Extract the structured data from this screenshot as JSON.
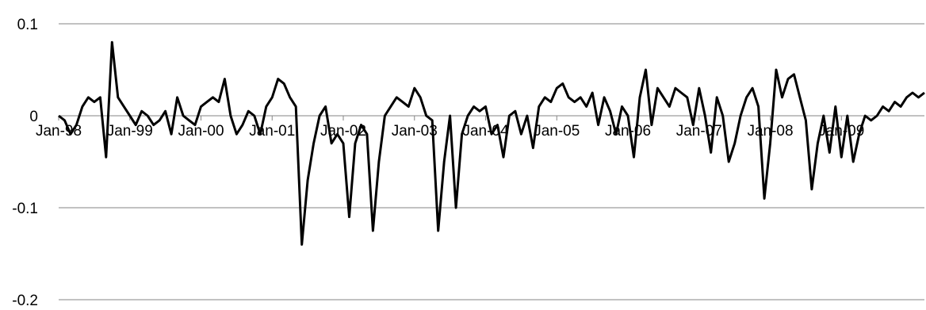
{
  "chart_data": {
    "type": "line",
    "title": "",
    "xlabel": "",
    "ylabel": "",
    "ylim": [
      -0.2,
      0.1
    ],
    "y_ticks": [
      0.1,
      0,
      -0.1,
      -0.2
    ],
    "y_tick_labels": [
      "0.1",
      "0",
      "-0.1",
      "-0.2"
    ],
    "x_range": [
      "1998-01",
      "2010-03"
    ],
    "x_ticks": [
      "1998-01",
      "1999-01",
      "2000-01",
      "2001-01",
      "2002-01",
      "2003-01",
      "2004-01",
      "2005-01",
      "2006-01",
      "2007-01",
      "2008-01",
      "2009-01"
    ],
    "x_tick_labels": [
      "Jan-98",
      "Jan-99",
      "Jan-00",
      "Jan-01",
      "Jan-02",
      "Jan-03",
      "Jan-04",
      "Jan-05",
      "Jan-06",
      "Jan-07",
      "Jan-08",
      "Jan-09"
    ],
    "grid": "horizontal",
    "legend": "none",
    "line_color": "#000000",
    "grid_color": "#868686",
    "series": [
      {
        "x": [
          "1998-01",
          "1998-02",
          "1998-03",
          "1998-04",
          "1998-05",
          "1998-06",
          "1998-07",
          "1998-08",
          "1998-09",
          "1998-10",
          "1998-11",
          "1998-12",
          "1999-01",
          "1999-02",
          "1999-03",
          "1999-04",
          "1999-05",
          "1999-06",
          "1999-07",
          "1999-08",
          "1999-09",
          "1999-10",
          "1999-11",
          "1999-12",
          "2000-01",
          "2000-02",
          "2000-03",
          "2000-04",
          "2000-05",
          "2000-06",
          "2000-07",
          "2000-08",
          "2000-09",
          "2000-10",
          "2000-11",
          "2000-12",
          "2001-01",
          "2001-02",
          "2001-03",
          "2001-04",
          "2001-05",
          "2001-06",
          "2001-07",
          "2001-08",
          "2001-09",
          "2001-10",
          "2001-11",
          "2001-12",
          "2002-01",
          "2002-02",
          "2002-03",
          "2002-04",
          "2002-05",
          "2002-06",
          "2002-07",
          "2002-08",
          "2002-09",
          "2002-10",
          "2002-11",
          "2002-12",
          "2003-01",
          "2003-02",
          "2003-03",
          "2003-04",
          "2003-05",
          "2003-06",
          "2003-07",
          "2003-08",
          "2003-09",
          "2003-10",
          "2003-11",
          "2003-12",
          "2004-01",
          "2004-02",
          "2004-03",
          "2004-04",
          "2004-05",
          "2004-06",
          "2004-07",
          "2004-08",
          "2004-09",
          "2004-10",
          "2004-11",
          "2004-12",
          "2005-01",
          "2005-02",
          "2005-03",
          "2005-04",
          "2005-05",
          "2005-06",
          "2005-07",
          "2005-08",
          "2005-09",
          "2005-10",
          "2005-11",
          "2005-12",
          "2006-01",
          "2006-02",
          "2006-03",
          "2006-04",
          "2006-05",
          "2006-06",
          "2006-07",
          "2006-08",
          "2006-09",
          "2006-10",
          "2006-11",
          "2006-12",
          "2007-01",
          "2007-02",
          "2007-03",
          "2007-04",
          "2007-05",
          "2007-06",
          "2007-07",
          "2007-08",
          "2007-09",
          "2007-10",
          "2007-11",
          "2007-12",
          "2008-01",
          "2008-02",
          "2008-03",
          "2008-04",
          "2008-05",
          "2008-06",
          "2008-07",
          "2008-08",
          "2008-09",
          "2008-10",
          "2008-11",
          "2008-12",
          "2009-01",
          "2009-02",
          "2009-03",
          "2009-04",
          "2009-05",
          "2009-06",
          "2009-07",
          "2009-08",
          "2009-09",
          "2009-10",
          "2009-11",
          "2009-12",
          "2010-01",
          "2010-02",
          "2010-03"
        ],
        "y": [
          0.0,
          -0.005,
          -0.02,
          -0.01,
          0.01,
          0.02,
          0.015,
          0.02,
          -0.045,
          0.08,
          0.02,
          0.01,
          0.0,
          -0.01,
          0.005,
          0.0,
          -0.01,
          -0.005,
          0.005,
          -0.02,
          0.02,
          0.0,
          -0.005,
          -0.01,
          0.01,
          0.015,
          0.02,
          0.015,
          0.04,
          0.0,
          -0.02,
          -0.01,
          0.005,
          0.0,
          -0.02,
          0.01,
          0.02,
          0.04,
          0.035,
          0.02,
          0.01,
          -0.14,
          -0.07,
          -0.03,
          0.0,
          0.01,
          -0.03,
          -0.02,
          -0.03,
          -0.11,
          -0.03,
          -0.01,
          -0.02,
          -0.125,
          -0.05,
          0.0,
          0.01,
          0.02,
          0.015,
          0.01,
          0.03,
          0.02,
          0.0,
          -0.005,
          -0.125,
          -0.05,
          0.0,
          -0.1,
          -0.02,
          0.0,
          0.01,
          0.005,
          0.01,
          -0.02,
          -0.01,
          -0.045,
          0.0,
          0.005,
          -0.02,
          0.0,
          -0.035,
          0.01,
          0.02,
          0.015,
          0.03,
          0.035,
          0.02,
          0.015,
          0.02,
          0.01,
          0.025,
          -0.01,
          0.02,
          0.005,
          -0.02,
          0.01,
          0.0,
          -0.045,
          0.02,
          0.05,
          -0.01,
          0.03,
          0.02,
          0.01,
          0.03,
          0.025,
          0.02,
          -0.01,
          0.03,
          0.0,
          -0.04,
          0.02,
          0.0,
          -0.05,
          -0.03,
          0.0,
          0.02,
          0.03,
          0.01,
          -0.09,
          -0.03,
          0.05,
          0.02,
          0.04,
          0.045,
          0.02,
          -0.005,
          -0.08,
          -0.03,
          0.0,
          -0.04,
          0.01,
          -0.045,
          0.0,
          -0.05,
          -0.02,
          0.0,
          -0.005,
          0.0,
          0.01,
          0.005,
          0.015,
          0.01,
          0.02,
          0.025,
          0.02,
          0.025
        ]
      }
    ]
  }
}
